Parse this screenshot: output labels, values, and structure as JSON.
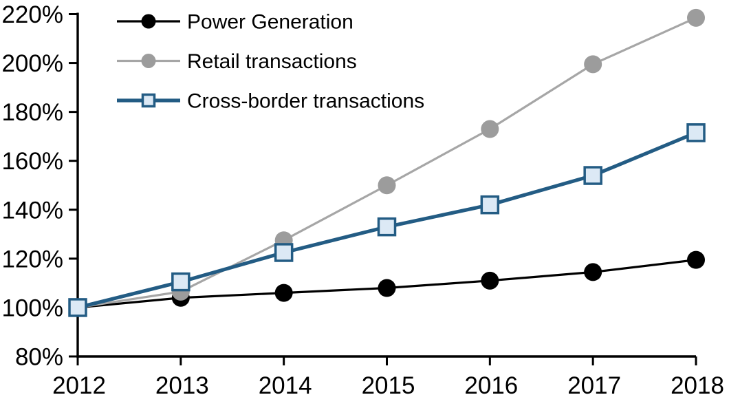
{
  "chart_data": {
    "type": "line",
    "x_tick_labels": [
      "2012",
      "2013",
      "2014",
      "2015",
      "2016",
      "2017",
      "2018"
    ],
    "y_tick_labels": [
      "80%",
      "100%",
      "120%",
      "140%",
      "160%",
      "180%",
      "200%",
      "220%"
    ],
    "ylim": [
      80,
      220
    ],
    "y_tick_step": 20,
    "grid": false,
    "background_color": "#FFFFFF",
    "axis_color": "#000000",
    "legend_position": "top-left-inside",
    "series": [
      {
        "name": "Power Generation",
        "marker": "circle",
        "color": "#000000",
        "marker_fill": "#000000",
        "values": [
          100,
          104,
          106,
          108,
          111,
          114.5,
          119.5
        ]
      },
      {
        "name": "Retail transactions",
        "marker": "circle",
        "color": "#A6A6A6",
        "marker_fill": "#9C9C9C",
        "values": [
          100,
          106.5,
          127.5,
          150,
          173,
          199.5,
          218.5
        ]
      },
      {
        "name": "Cross-border transactions",
        "marker": "square",
        "color": "#235C84",
        "marker_fill": "#DCE9F5",
        "values": [
          100,
          110.5,
          122.5,
          133,
          142,
          154,
          171.5
        ]
      }
    ]
  }
}
